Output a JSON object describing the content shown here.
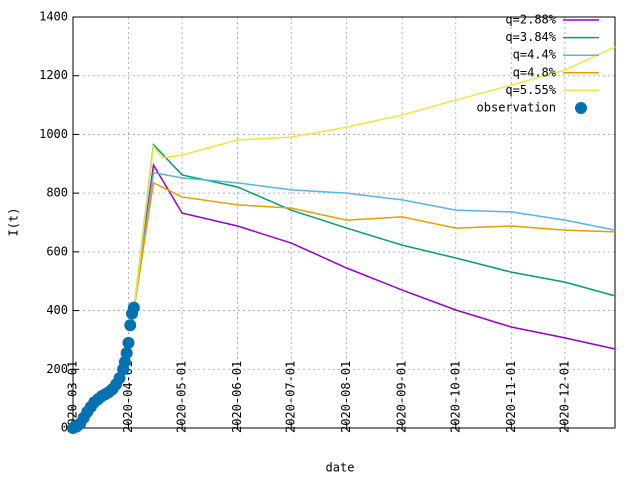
{
  "chart_data": {
    "type": "line",
    "xlabel": "date",
    "ylabel": "I(t)",
    "xlim": [
      "2020-03-01",
      "2020-12-29"
    ],
    "xticks": [
      "2020-03-01",
      "2020-04-01",
      "2020-05-01",
      "2020-06-01",
      "2020-07-01",
      "2020-08-01",
      "2020-09-01",
      "2020-10-01",
      "2020-11-01",
      "2020-12-01"
    ],
    "ylim": [
      0,
      1400
    ],
    "yticks": [
      0,
      200,
      400,
      600,
      800,
      1000,
      1200,
      1400
    ],
    "grid": true,
    "legend": "top-right",
    "series": [
      {
        "name": "q=2.88%",
        "color": "#9400d3",
        "marker": "line",
        "x": [
          "2020-04-04",
          "2020-04-15",
          "2020-05-01",
          "2020-06-01",
          "2020-07-01",
          "2020-08-01",
          "2020-09-01",
          "2020-10-01",
          "2020-11-01",
          "2020-12-01",
          "2020-12-29"
        ],
        "values": [
          400,
          896,
          732,
          688,
          630,
          545,
          470,
          402,
          344,
          307,
          269
        ]
      },
      {
        "name": "q=3.84%",
        "color": "#009e73",
        "marker": "line",
        "x": [
          "2020-04-04",
          "2020-04-15",
          "2020-05-01",
          "2020-06-01",
          "2020-07-01",
          "2020-08-01",
          "2020-09-01",
          "2020-10-01",
          "2020-11-01",
          "2020-12-01",
          "2020-12-29"
        ],
        "values": [
          400,
          965,
          862,
          821,
          742,
          681,
          623,
          579,
          531,
          497,
          450
        ]
      },
      {
        "name": "q=4.4%",
        "color": "#56b4e9",
        "marker": "line",
        "x": [
          "2020-04-04",
          "2020-04-15",
          "2020-05-01",
          "2020-06-01",
          "2020-07-01",
          "2020-08-01",
          "2020-09-01",
          "2020-10-01",
          "2020-11-01",
          "2020-12-01",
          "2020-12-29"
        ],
        "values": [
          400,
          870,
          852,
          835,
          811,
          800,
          777,
          742,
          736,
          708,
          674
        ]
      },
      {
        "name": "q=4.8%",
        "color": "#e69f00",
        "marker": "line",
        "x": [
          "2020-04-04",
          "2020-04-15",
          "2020-05-01",
          "2020-06-01",
          "2020-07-01",
          "2020-08-01",
          "2020-09-01",
          "2020-10-01",
          "2020-11-01",
          "2020-12-01",
          "2020-12-29"
        ],
        "values": [
          400,
          835,
          787,
          760,
          749,
          708,
          719,
          681,
          688,
          674,
          668
        ]
      },
      {
        "name": "q=5.55%",
        "color": "#f0e442",
        "marker": "line",
        "x": [
          "2020-04-04",
          "2020-04-15",
          "2020-04-20",
          "2020-05-01",
          "2020-06-01",
          "2020-07-01",
          "2020-08-01",
          "2020-09-01",
          "2020-10-01",
          "2020-11-01",
          "2020-12-01",
          "2020-12-29"
        ],
        "values": [
          400,
          960,
          920,
          930,
          981,
          991,
          1025,
          1066,
          1117,
          1168,
          1219,
          1298
        ]
      },
      {
        "name": "observation",
        "color": "#0072b2",
        "marker": "point",
        "x": [
          "2020-03-01",
          "2020-03-03",
          "2020-03-05",
          "2020-03-07",
          "2020-03-09",
          "2020-03-11",
          "2020-03-13",
          "2020-03-15",
          "2020-03-17",
          "2020-03-19",
          "2020-03-21",
          "2020-03-23",
          "2020-03-25",
          "2020-03-27",
          "2020-03-29",
          "2020-03-30",
          "2020-03-31",
          "2020-04-01",
          "2020-04-02",
          "2020-04-03",
          "2020-04-04"
        ],
        "values": [
          0,
          5,
          15,
          35,
          55,
          72,
          88,
          98,
          108,
          115,
          122,
          132,
          148,
          170,
          200,
          225,
          255,
          290,
          350,
          390,
          410
        ]
      }
    ]
  }
}
